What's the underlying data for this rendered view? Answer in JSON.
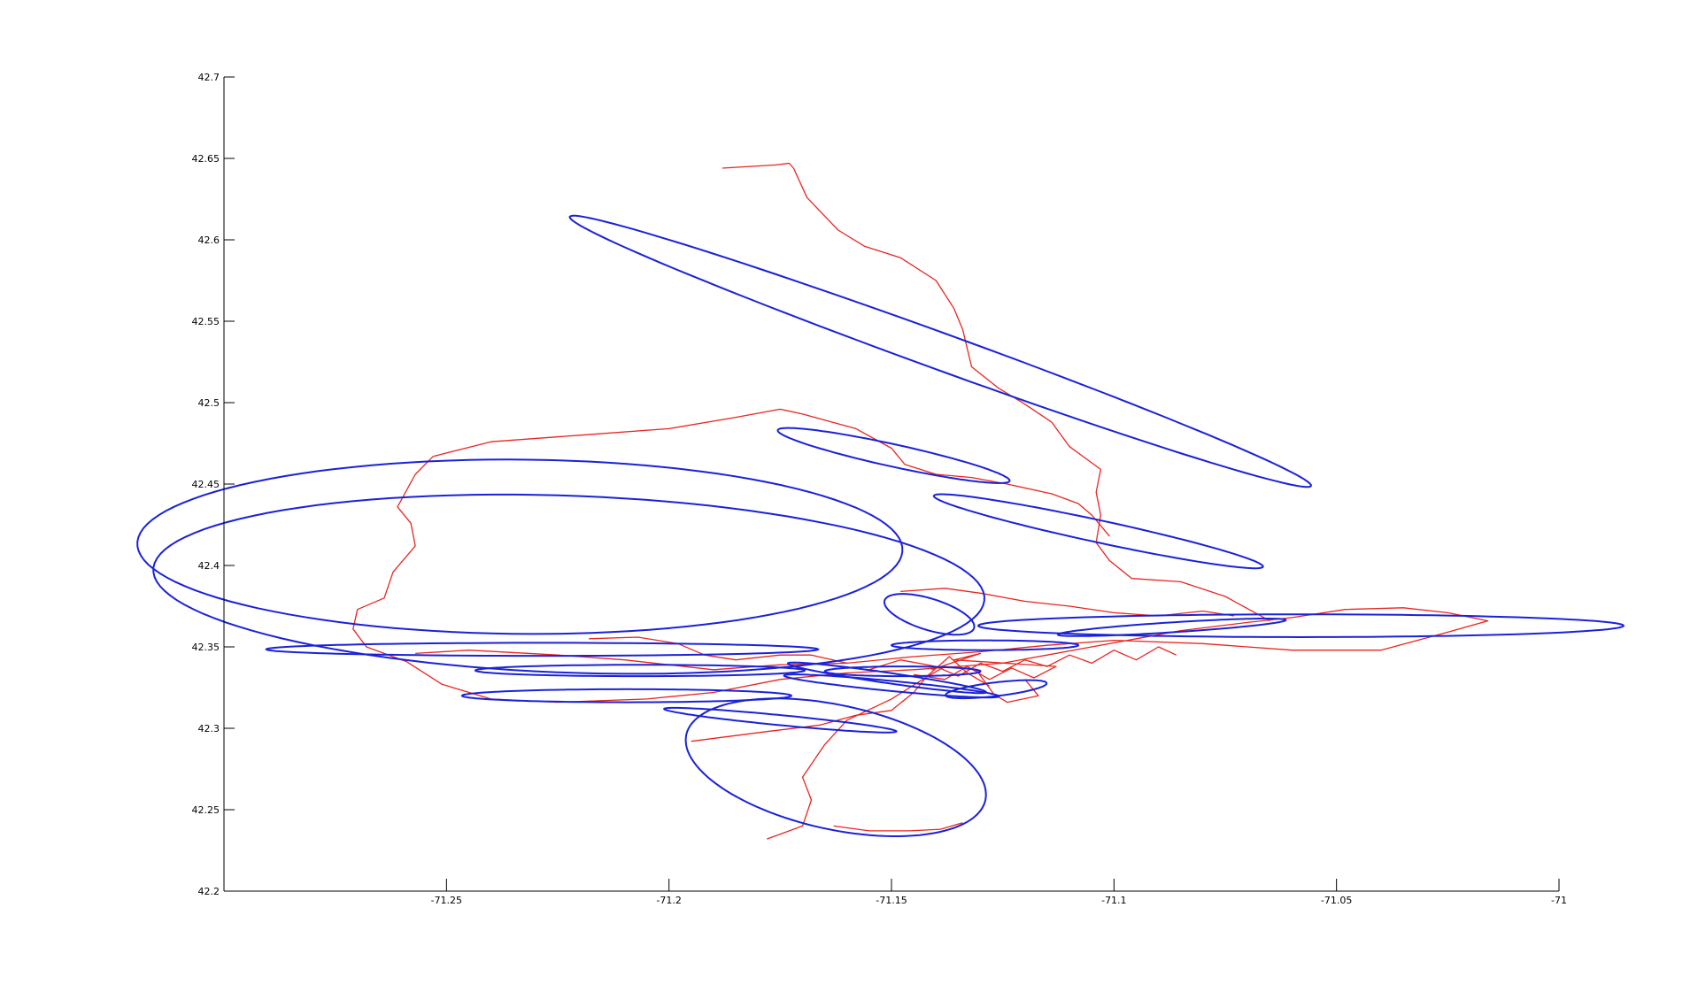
{
  "chart_data": {
    "type": "line",
    "title": "",
    "xlabel": "",
    "ylabel": "",
    "xlim": [
      -71.3,
      -71.0
    ],
    "ylim": [
      42.2,
      42.7
    ],
    "xticks": [
      -71.25,
      -71.2,
      -71.15,
      -71.1,
      -71.05,
      -71
    ],
    "xtick_labels": [
      "-71.25",
      "-71.2",
      "-71.15",
      "-71.1",
      "-71.05",
      "-71"
    ],
    "yticks": [
      42.2,
      42.25,
      42.3,
      42.35,
      42.4,
      42.45,
      42.5,
      42.55,
      42.6,
      42.65,
      42.7
    ],
    "ytick_labels": [
      "42.2",
      "42.25",
      "42.3",
      "42.35",
      "42.4",
      "42.45",
      "42.5",
      "42.55",
      "42.6",
      "42.65",
      "42.7"
    ],
    "grid": false,
    "legend": "none",
    "colors": {
      "track": "#e8251f",
      "ellipse": "#1a22d8"
    },
    "series": [
      {
        "kind": "track",
        "segments": [
          [
            [
              -71.188,
              42.644
            ],
            [
              -71.176,
              42.646
            ],
            [
              -71.173,
              42.647
            ],
            [
              -71.172,
              42.644
            ],
            [
              -71.169,
              42.626
            ],
            [
              -71.162,
              42.606
            ],
            [
              -71.156,
              42.596
            ],
            [
              -71.148,
              42.589
            ],
            [
              -71.14,
              42.575
            ],
            [
              -71.136,
              42.558
            ],
            [
              -71.134,
              42.545
            ],
            [
              -71.132,
              42.522
            ],
            [
              -71.126,
              42.509
            ],
            [
              -71.12,
              42.499
            ],
            [
              -71.114,
              42.488
            ],
            [
              -71.11,
              42.473
            ],
            [
              -71.103,
              42.459
            ],
            [
              -71.104,
              42.445
            ],
            [
              -71.103,
              42.431
            ],
            [
              -71.104,
              42.414
            ],
            [
              -71.101,
              42.403
            ],
            [
              -71.096,
              42.392
            ],
            [
              -71.085,
              42.39
            ],
            [
              -71.075,
              42.381
            ],
            [
              -71.065,
              42.366
            ]
          ],
          [
            [
              -71.253,
              42.467
            ],
            [
              -71.24,
              42.476
            ],
            [
              -71.22,
              42.48
            ],
            [
              -71.2,
              42.484
            ],
            [
              -71.185,
              42.491
            ],
            [
              -71.175,
              42.496
            ],
            [
              -71.17,
              42.493
            ],
            [
              -71.158,
              42.484
            ],
            [
              -71.15,
              42.472
            ],
            [
              -71.147,
              42.462
            ],
            [
              -71.14,
              42.456
            ],
            [
              -71.132,
              42.454
            ],
            [
              -71.124,
              42.45
            ],
            [
              -71.114,
              42.444
            ],
            [
              -71.108,
              42.438
            ],
            [
              -71.105,
              42.431
            ],
            [
              -71.101,
              42.418
            ]
          ],
          [
            [
              -71.253,
              42.467
            ],
            [
              -71.257,
              42.456
            ],
            [
              -71.261,
              42.436
            ],
            [
              -71.258,
              42.426
            ],
            [
              -71.257,
              42.412
            ],
            [
              -71.262,
              42.396
            ],
            [
              -71.264,
              42.38
            ],
            [
              -71.27,
              42.373
            ],
            [
              -71.271,
              42.361
            ],
            [
              -71.268,
              42.35
            ],
            [
              -71.259,
              42.341
            ],
            [
              -71.251,
              42.327
            ],
            [
              -71.24,
              42.318
            ],
            [
              -71.225,
              42.316
            ],
            [
              -71.205,
              42.318
            ],
            [
              -71.19,
              42.322
            ],
            [
              -71.175,
              42.33
            ],
            [
              -71.16,
              42.334
            ],
            [
              -71.145,
              42.336
            ],
            [
              -71.135,
              42.338
            ],
            [
              -71.125,
              42.34
            ],
            [
              -71.115,
              42.345
            ],
            [
              -71.105,
              42.35
            ],
            [
              -71.095,
              42.355
            ],
            [
              -71.085,
              42.36
            ],
            [
              -71.07,
              42.365
            ],
            [
              -71.06,
              42.368
            ],
            [
              -71.048,
              42.373
            ],
            [
              -71.035,
              42.374
            ],
            [
              -71.025,
              42.371
            ],
            [
              -71.016,
              42.366
            ],
            [
              -71.025,
              42.359
            ],
            [
              -71.04,
              42.348
            ],
            [
              -71.06,
              42.348
            ],
            [
              -71.08,
              42.352
            ],
            [
              -71.1,
              42.354
            ],
            [
              -71.115,
              42.351
            ],
            [
              -71.13,
              42.347
            ],
            [
              -71.145,
              42.344
            ],
            [
              -71.16,
              42.34
            ],
            [
              -71.175,
              42.339
            ],
            [
              -71.19,
              42.336
            ],
            [
              -71.21,
              42.342
            ],
            [
              -71.225,
              42.345
            ],
            [
              -71.245,
              42.348
            ],
            [
              -71.257,
              42.346
            ]
          ],
          [
            [
              -71.178,
              42.232
            ],
            [
              -71.17,
              42.24
            ],
            [
              -71.168,
              42.256
            ],
            [
              -71.17,
              42.27
            ],
            [
              -71.165,
              42.29
            ],
            [
              -71.16,
              42.305
            ],
            [
              -71.15,
              42.318
            ],
            [
              -71.143,
              42.33
            ],
            [
              -71.138,
              42.338
            ],
            [
              -71.131,
              42.336
            ],
            [
              -71.127,
              42.321
            ],
            [
              -71.124,
              42.316
            ],
            [
              -71.117,
              42.32
            ],
            [
              -71.12,
              42.33
            ]
          ],
          [
            [
              -71.195,
              42.292
            ],
            [
              -71.178,
              42.298
            ],
            [
              -71.166,
              42.302
            ],
            [
              -71.158,
              42.308
            ],
            [
              -71.15,
              42.311
            ],
            [
              -71.145,
              42.322
            ],
            [
              -71.142,
              42.332
            ],
            [
              -71.137,
              42.344
            ],
            [
              -71.133,
              42.334
            ],
            [
              -71.128,
              42.326
            ]
          ],
          [
            [
              -71.163,
              42.24
            ],
            [
              -71.155,
              42.237
            ],
            [
              -71.146,
              42.237
            ],
            [
              -71.139,
              42.238
            ],
            [
              -71.134,
              42.242
            ]
          ],
          [
            [
              -71.148,
              42.384
            ],
            [
              -71.138,
              42.386
            ],
            [
              -71.13,
              42.383
            ],
            [
              -71.12,
              42.378
            ],
            [
              -71.11,
              42.375
            ],
            [
              -71.1,
              42.371
            ],
            [
              -71.09,
              42.369
            ],
            [
              -71.08,
              42.372
            ],
            [
              -71.073,
              42.369
            ]
          ],
          [
            [
              -71.218,
              42.355
            ],
            [
              -71.207,
              42.356
            ],
            [
              -71.198,
              42.352
            ],
            [
              -71.192,
              42.345
            ],
            [
              -71.185,
              42.342
            ],
            [
              -71.175,
              42.345
            ],
            [
              -71.168,
              42.345
            ],
            [
              -71.16,
              42.34
            ]
          ],
          [
            [
              -71.155,
              42.336
            ],
            [
              -71.148,
              42.342
            ],
            [
              -71.14,
              42.338
            ],
            [
              -71.135,
              42.332
            ],
            [
              -71.13,
              42.34
            ],
            [
              -71.125,
              42.335
            ],
            [
              -71.12,
              42.342
            ],
            [
              -71.115,
              42.338
            ],
            [
              -71.11,
              42.345
            ],
            [
              -71.105,
              42.34
            ],
            [
              -71.1,
              42.348
            ],
            [
              -71.095,
              42.342
            ],
            [
              -71.09,
              42.35
            ],
            [
              -71.086,
              42.345
            ]
          ],
          [
            [
              -71.145,
              42.333
            ],
            [
              -71.138,
              42.33
            ],
            [
              -71.133,
              42.338
            ],
            [
              -71.128,
              42.33
            ],
            [
              -71.123,
              42.337
            ],
            [
              -71.118,
              42.331
            ],
            [
              -71.113,
              42.338
            ],
            [
              -71.136,
              42.342
            ],
            [
              -71.13,
              42.346
            ],
            [
              -71.141,
              42.336
            ]
          ]
        ]
      },
      {
        "kind": "ellipses",
        "items": [
          {
            "cx": -71.139,
            "cy": 42.5315,
            "semi_major": 0.1175,
            "semi_minor": 0.0085,
            "angle_deg": -45
          },
          {
            "cx": -71.1495,
            "cy": 42.4675,
            "semi_major": 0.0305,
            "semi_minor": 0.006,
            "angle_deg": -32
          },
          {
            "cx": -71.1035,
            "cy": 42.421,
            "semi_major": 0.043,
            "semi_minor": 0.006,
            "angle_deg": -31
          },
          {
            "cx": -71.2335,
            "cy": 42.4115,
            "semi_major": 0.086,
            "semi_minor": 0.0535,
            "angle_deg": -2
          },
          {
            "cx": -71.2225,
            "cy": 42.3885,
            "semi_major": 0.094,
            "semi_minor": 0.054,
            "angle_deg": -8
          },
          {
            "cx": -71.2285,
            "cy": 42.3485,
            "semi_major": 0.062,
            "semi_minor": 0.004,
            "angle_deg": 0
          },
          {
            "cx": -71.2065,
            "cy": 42.3355,
            "semi_major": 0.037,
            "semi_minor": 0.0035,
            "angle_deg": 0
          },
          {
            "cx": -71.2095,
            "cy": 42.32,
            "semi_major": 0.037,
            "semi_minor": 0.004,
            "angle_deg": 0
          },
          {
            "cx": -71.1475,
            "cy": 42.335,
            "semi_major": 0.0175,
            "semi_minor": 0.003,
            "angle_deg": 0
          },
          {
            "cx": -71.151,
            "cy": 42.331,
            "semi_major": 0.024,
            "semi_minor": 0.003,
            "angle_deg": -22
          },
          {
            "cx": -71.15,
            "cy": 42.326,
            "semi_major": 0.025,
            "semi_minor": 0.003,
            "angle_deg": -15
          },
          {
            "cx": -71.175,
            "cy": 42.305,
            "semi_major": 0.027,
            "semi_minor": 0.003,
            "angle_deg": -15
          },
          {
            "cx": -71.1625,
            "cy": 42.276,
            "semi_major": 0.046,
            "semi_minor": 0.0285,
            "angle_deg": -60
          },
          {
            "cx": -71.1415,
            "cy": 42.37,
            "semi_major": 0.0145,
            "semi_minor": 0.007,
            "angle_deg": -55
          },
          {
            "cx": -71.129,
            "cy": 42.351,
            "semi_major": 0.021,
            "semi_minor": 0.003,
            "angle_deg": 0
          },
          {
            "cx": -71.1265,
            "cy": 42.324,
            "semi_major": 0.012,
            "semi_minor": 0.004,
            "angle_deg": 20
          },
          {
            "cx": -71.087,
            "cy": 42.362,
            "semi_major": 0.026,
            "semi_minor": 0.003,
            "angle_deg": 10
          },
          {
            "cx": -71.058,
            "cy": 42.363,
            "semi_major": 0.0725,
            "semi_minor": 0.007,
            "angle_deg": 0
          }
        ]
      }
    ]
  }
}
